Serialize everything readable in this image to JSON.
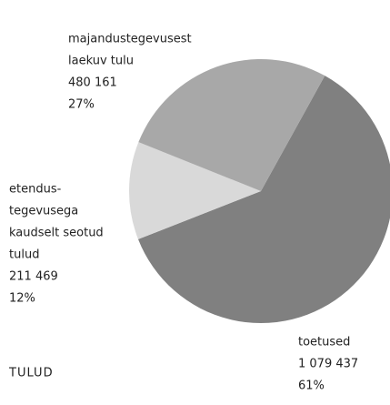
{
  "chart_data": {
    "type": "pie",
    "title": "TULUD",
    "categories": [
      [
        "toetused"
      ],
      [
        "etendus-",
        "tegevusega",
        "kaudselt seotud",
        "tulud"
      ],
      [
        "majandustegevusest",
        "laekuv tulu"
      ]
    ],
    "values": [
      61,
      12,
      27
    ],
    "value_labels": [
      "61%",
      "12%",
      "27%"
    ],
    "amounts": [
      1079437,
      211469,
      480161
    ],
    "amount_labels": [
      "1 079 437",
      "211 469",
      "480 161"
    ],
    "colors": [
      "#808080",
      "#d9d9d9",
      "#a8a8a8"
    ],
    "startangle": 29
  }
}
